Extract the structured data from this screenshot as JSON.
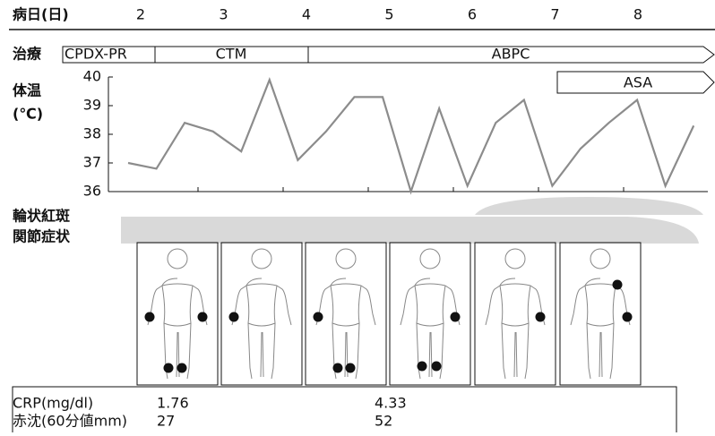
{
  "chart_data": {
    "type": "line",
    "x_label": "病日(日)",
    "days": [
      "2",
      "3",
      "4",
      "5",
      "6",
      "7",
      "8"
    ],
    "treatment_label": "治療",
    "treatments": [
      "CPDX-PR",
      "CTM",
      "ABPC",
      "ASA"
    ],
    "y_label": [
      "体温",
      "(℃)"
    ],
    "ylim": [
      36,
      40
    ],
    "yticks": [
      36,
      37,
      38,
      39,
      40
    ],
    "values": [
      37.0,
      36.8,
      38.4,
      38.1,
      37.4,
      39.9,
      37.1,
      38.1,
      39.3,
      39.3,
      36.0,
      38.9,
      36.2,
      38.4,
      39.2,
      36.2,
      37.5,
      38.4,
      39.2,
      36.2,
      38.3
    ],
    "color": "#8c8c8c",
    "symptoms": [
      "輪状紅斑",
      "関節症状"
    ],
    "labs": [
      {
        "label": "CRP(mg/dl)",
        "values": [
          1.76,
          4.33
        ]
      },
      {
        "label": "赤沈(60分値mm)",
        "values": [
          27,
          52
        ]
      }
    ]
  }
}
